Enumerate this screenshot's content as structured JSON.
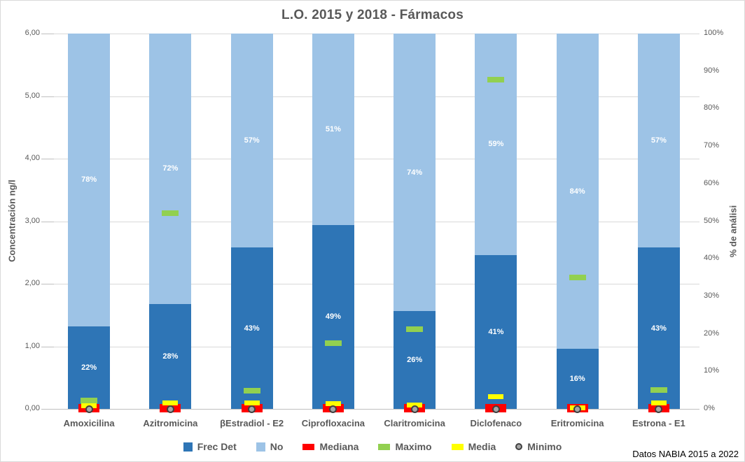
{
  "title": "L.O. 2015 y 2018 - Fármacos",
  "footnote": "Datos NABIA 2015 a 2022",
  "colors": {
    "frec_det": "#2E75B6",
    "no": "#9DC3E6",
    "mediana": "#FF0000",
    "maximo": "#92D050",
    "media": "#FFFF00",
    "minimo_fill": "#A6A6A6",
    "minimo_stroke": "#404040",
    "gridline": "#D9D9D9",
    "axis_line": "#BFBFBF",
    "text": "#595959",
    "bar_label": "#FFFFFF"
  },
  "chart_data": {
    "type": "bar",
    "subtype": "100pct-stacked-columns-with-value-markers",
    "title": "L.O. 2015 y 2018 - Fármacos",
    "categories": [
      "Amoxicilina",
      "Azitromicina",
      "βEstradiol - E2",
      "Ciprofloxacina",
      "Claritromicina",
      "Diclofenaco",
      "Eritromicina",
      "Estrona - E1"
    ],
    "series": [
      {
        "name": "Frec Det",
        "role": "stack-bottom",
        "color": "#2E75B6",
        "unit": "% de análisis",
        "values": [
          22,
          28,
          43,
          49,
          26,
          41,
          16,
          43
        ],
        "labels": [
          "22%",
          "28%",
          "43%",
          "49%",
          "26%",
          "41%",
          "16%",
          "43%"
        ]
      },
      {
        "name": "No",
        "role": "stack-top",
        "color": "#9DC3E6",
        "unit": "% de análisis",
        "values": [
          78,
          72,
          57,
          51,
          74,
          59,
          84,
          57
        ],
        "labels": [
          "78%",
          "72%",
          "57%",
          "51%",
          "74%",
          "59%",
          "84%",
          "57%"
        ]
      }
    ],
    "markers": [
      {
        "name": "Mediana",
        "shape": "dash",
        "color": "#FF0000",
        "unit": "ng/l",
        "values": [
          0.01,
          0.01,
          0.01,
          0.01,
          0.01,
          0.01,
          0.01,
          0.01
        ]
      },
      {
        "name": "Maximo",
        "shape": "dash",
        "color": "#92D050",
        "unit": "ng/l",
        "values": [
          0.13,
          3.13,
          0.29,
          1.05,
          1.27,
          5.26,
          2.1,
          0.3
        ]
      },
      {
        "name": "Media",
        "shape": "dash",
        "color": "#FFFF00",
        "unit": "ng/l",
        "values": [
          0.05,
          0.09,
          0.09,
          0.08,
          0.06,
          0.2,
          0.02,
          0.09
        ]
      },
      {
        "name": "Minimo",
        "shape": "circle",
        "color": "#A6A6A6",
        "unit": "ng/l",
        "values": [
          0,
          0,
          0,
          0,
          0,
          0,
          0,
          0
        ]
      }
    ],
    "left_axis": {
      "label": "Concentración ng/l",
      "min": 0,
      "max": 6,
      "step": 1,
      "ticks": [
        "0,00",
        "1,00",
        "2,00",
        "3,00",
        "4,00",
        "5,00",
        "6,00"
      ]
    },
    "right_axis": {
      "label": "% de análisi",
      "min": 0,
      "max": 100,
      "step": 10,
      "ticks": [
        "0%",
        "10%",
        "20%",
        "30%",
        "40%",
        "50%",
        "60%",
        "70%",
        "80%",
        "90%",
        "100%"
      ]
    },
    "legend_position": "bottom",
    "gridlines": "horizontal",
    "legend": [
      {
        "label": "Frec Det",
        "swatch": "square",
        "color": "#2E75B6"
      },
      {
        "label": "No",
        "swatch": "square",
        "color": "#9DC3E6"
      },
      {
        "label": "Mediana",
        "swatch": "dash",
        "color": "#FF0000"
      },
      {
        "label": "Maximo",
        "swatch": "dash",
        "color": "#92D050"
      },
      {
        "label": "Media",
        "swatch": "dash",
        "color": "#FFFF00"
      },
      {
        "label": "Minimo",
        "swatch": "circle",
        "color": "#A6A6A6"
      }
    ]
  }
}
